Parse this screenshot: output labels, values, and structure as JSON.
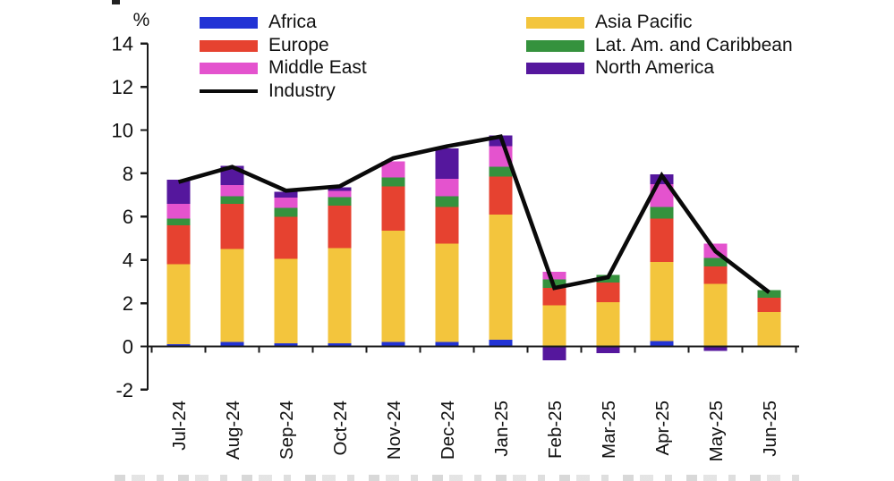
{
  "unit_label": "%",
  "colors": {
    "africa": "#2233d5",
    "asia_pacific": "#f3c53d",
    "europe": "#e64230",
    "lat_am": "#35923d",
    "middle_east": "#e453ce",
    "north_america": "#55179d",
    "industry": "#0a0a0a",
    "axis": "#1a1a1a"
  },
  "legend": {
    "left": [
      {
        "label": "Africa",
        "key": "africa",
        "type": "swatch"
      },
      {
        "label": "Europe",
        "key": "europe",
        "type": "swatch"
      },
      {
        "label": "Middle East",
        "key": "middle_east",
        "type": "swatch"
      },
      {
        "label": "Industry",
        "key": "industry",
        "type": "line"
      }
    ],
    "right": [
      {
        "label": "Asia Pacific",
        "key": "asia_pacific",
        "type": "swatch"
      },
      {
        "label": "Lat. Am. and Caribbean",
        "key": "lat_am",
        "type": "swatch"
      },
      {
        "label": "North America",
        "key": "north_america",
        "type": "swatch"
      }
    ]
  },
  "chart_data": {
    "type": "bar",
    "stacked": true,
    "title": "",
    "xlabel": "",
    "ylabel": "%",
    "ylim": [
      -2,
      14
    ],
    "ytick_step": 2,
    "grid": false,
    "legend_position": "top",
    "categories": [
      "Jul-24",
      "Aug-24",
      "Sep-24",
      "Oct-24",
      "Nov-24",
      "Dec-24",
      "Jan-25",
      "Feb-25",
      "Mar-25",
      "Apr-25",
      "May-25",
      "Jun-25"
    ],
    "series": [
      {
        "name": "Africa",
        "key": "africa",
        "values": [
          0.1,
          0.2,
          0.15,
          0.15,
          0.2,
          0.2,
          0.3,
          0.0,
          0.0,
          0.25,
          0.0,
          0.0
        ]
      },
      {
        "name": "Asia Pacific",
        "key": "asia_pacific",
        "values": [
          3.7,
          4.3,
          3.9,
          4.4,
          5.15,
          4.55,
          5.8,
          1.9,
          2.05,
          3.65,
          2.9,
          1.6
        ]
      },
      {
        "name": "Europe",
        "key": "europe",
        "values": [
          1.8,
          2.1,
          1.95,
          1.95,
          2.05,
          1.7,
          1.75,
          0.8,
          0.9,
          2.0,
          0.8,
          0.65
        ]
      },
      {
        "name": "Lat. Am. and Caribbean",
        "key": "lat_am",
        "values": [
          0.3,
          0.35,
          0.4,
          0.4,
          0.4,
          0.5,
          0.45,
          0.4,
          0.35,
          0.55,
          0.4,
          0.35
        ]
      },
      {
        "name": "Middle East",
        "key": "middle_east",
        "values": [
          0.7,
          0.5,
          0.48,
          0.3,
          0.75,
          0.8,
          0.95,
          0.35,
          0.0,
          1.05,
          0.65,
          0.0
        ]
      },
      {
        "name": "North America",
        "key": "north_america",
        "values": [
          1.1,
          0.9,
          0.27,
          0.15,
          0.0,
          1.4,
          0.5,
          -0.65,
          -0.3,
          0.45,
          -0.2,
          0.0
        ]
      }
    ],
    "overlay_line": {
      "name": "Industry",
      "key": "industry",
      "values": [
        7.6,
        8.3,
        7.2,
        7.4,
        8.7,
        9.25,
        9.7,
        2.7,
        3.2,
        7.9,
        4.4,
        2.5
      ]
    }
  }
}
